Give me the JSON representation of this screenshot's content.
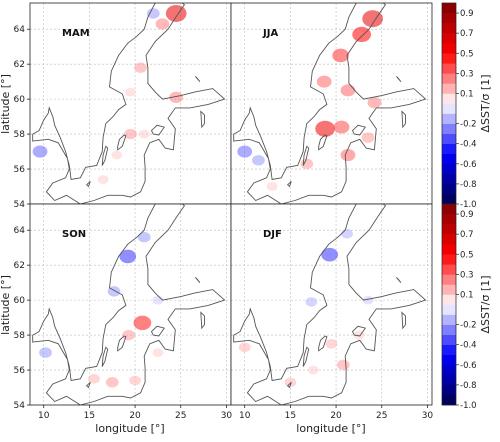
{
  "chart_data": {
    "type": "heatmap",
    "xlabel": "longitude [°]",
    "ylabel": "latitude [°]",
    "xlim": [
      8.5,
      30.5
    ],
    "ylim": [
      54,
      65.5
    ],
    "x_ticks": [
      "10",
      "15",
      "20",
      "25",
      "30"
    ],
    "y_ticks": [
      "54",
      "56",
      "58",
      "60",
      "62",
      "64"
    ],
    "x_tick_values": [
      10,
      15,
      20,
      25,
      30
    ],
    "y_tick_values": [
      54,
      56,
      58,
      60,
      62,
      64
    ],
    "grid": true,
    "panels": [
      {
        "label": "MAM",
        "blobs": [
          {
            "lon": 24.5,
            "lat": 64.9,
            "value": 0.6
          },
          {
            "lon": 23.0,
            "lat": 64.3,
            "value": 0.25
          },
          {
            "lon": 20.6,
            "lat": 61.8,
            "value": 0.2
          },
          {
            "lon": 19.5,
            "lat": 60.4,
            "value": 0.1
          },
          {
            "lon": 24.5,
            "lat": 60.1,
            "value": 0.25
          },
          {
            "lon": 19.5,
            "lat": 58.0,
            "value": 0.2
          },
          {
            "lon": 18.0,
            "lat": 56.8,
            "value": 0.1
          },
          {
            "lon": 16.5,
            "lat": 55.4,
            "value": 0.1
          },
          {
            "lon": 21.0,
            "lat": 58.0,
            "value": 0.1
          },
          {
            "lon": 22.0,
            "lat": 64.9,
            "value": -0.2
          },
          {
            "lon": 9.6,
            "lat": 57.0,
            "value": -0.3
          }
        ]
      },
      {
        "label": "JJA",
        "blobs": [
          {
            "lon": 24.0,
            "lat": 64.6,
            "value": 0.6
          },
          {
            "lon": 22.8,
            "lat": 63.7,
            "value": 0.5
          },
          {
            "lon": 20.5,
            "lat": 62.5,
            "value": 0.4
          },
          {
            "lon": 18.7,
            "lat": 61.0,
            "value": 0.3
          },
          {
            "lon": 21.3,
            "lat": 60.5,
            "value": 0.3
          },
          {
            "lon": 18.8,
            "lat": 58.3,
            "value": 0.55
          },
          {
            "lon": 20.6,
            "lat": 58.4,
            "value": 0.35
          },
          {
            "lon": 21.3,
            "lat": 56.8,
            "value": 0.3
          },
          {
            "lon": 16.8,
            "lat": 56.3,
            "value": 0.2
          },
          {
            "lon": 24.2,
            "lat": 59.8,
            "value": 0.25
          },
          {
            "lon": 23.5,
            "lat": 57.8,
            "value": 0.2
          },
          {
            "lon": 11.5,
            "lat": 56.5,
            "value": -0.2
          },
          {
            "lon": 10.0,
            "lat": 57.0,
            "value": -0.3
          },
          {
            "lon": 13.0,
            "lat": 55.0,
            "value": 0.1
          }
        ]
      },
      {
        "label": "SON",
        "blobs": [
          {
            "lon": 19.2,
            "lat": 62.5,
            "value": -0.4
          },
          {
            "lon": 21.0,
            "lat": 63.6,
            "value": -0.2
          },
          {
            "lon": 17.7,
            "lat": 60.5,
            "value": -0.2
          },
          {
            "lon": 22.5,
            "lat": 60.0,
            "value": -0.1
          },
          {
            "lon": 20.8,
            "lat": 58.7,
            "value": 0.45
          },
          {
            "lon": 19.3,
            "lat": 58.0,
            "value": 0.2
          },
          {
            "lon": 17.5,
            "lat": 55.3,
            "value": 0.2
          },
          {
            "lon": 20.0,
            "lat": 55.4,
            "value": 0.15
          },
          {
            "lon": 15.5,
            "lat": 55.5,
            "value": 0.15
          },
          {
            "lon": 10.2,
            "lat": 57.0,
            "value": -0.2
          },
          {
            "lon": 22.5,
            "lat": 57.0,
            "value": 0.1
          }
        ]
      },
      {
        "label": "DJF",
        "blobs": [
          {
            "lon": 19.3,
            "lat": 62.6,
            "value": -0.4
          },
          {
            "lon": 21.2,
            "lat": 63.8,
            "value": -0.15
          },
          {
            "lon": 17.3,
            "lat": 59.9,
            "value": -0.15
          },
          {
            "lon": 19.5,
            "lat": 57.5,
            "value": 0.15
          },
          {
            "lon": 20.8,
            "lat": 56.3,
            "value": 0.2
          },
          {
            "lon": 17.5,
            "lat": 56.0,
            "value": 0.1
          },
          {
            "lon": 15.0,
            "lat": 55.3,
            "value": 0.15
          },
          {
            "lon": 10.0,
            "lat": 57.3,
            "value": 0.15
          },
          {
            "lon": 22.5,
            "lat": 58.0,
            "value": 0.1
          },
          {
            "lon": 23.5,
            "lat": 60.0,
            "value": -0.1
          }
        ]
      }
    ],
    "colorbar": {
      "label": "ΔSST/σ [1]",
      "colormap": "seismic",
      "range": [
        -1.0,
        1.0
      ],
      "ticks": [
        "-1.0",
        "-0.8",
        "-0.6",
        "-0.4",
        "-0.2",
        "0.1",
        "0.3",
        "0.5",
        "0.7",
        "0.9"
      ],
      "tick_values": [
        -1.0,
        -0.8,
        -0.6,
        -0.4,
        -0.2,
        0.1,
        0.3,
        0.5,
        0.7,
        0.9
      ],
      "levels": [
        -1.0,
        -0.9,
        -0.8,
        -0.7,
        -0.6,
        -0.5,
        -0.4,
        -0.3,
        -0.2,
        -0.1,
        0.0,
        0.1,
        0.2,
        0.3,
        0.4,
        0.5,
        0.6,
        0.7,
        0.8,
        0.9,
        1.0
      ]
    }
  }
}
